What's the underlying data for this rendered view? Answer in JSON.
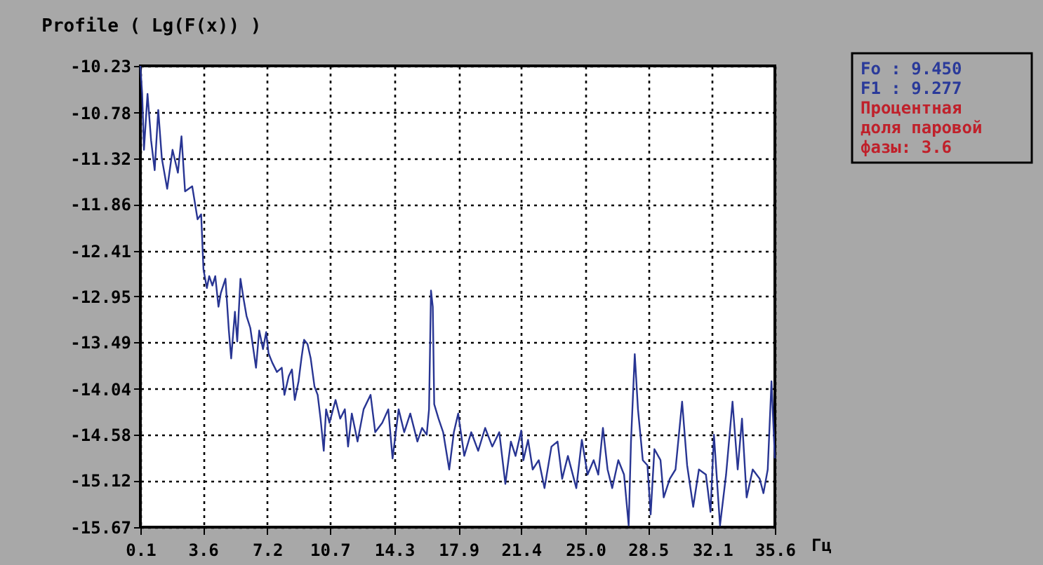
{
  "chart_data": {
    "type": "line",
    "title": "Profile  ( Lg(F(x)) )",
    "xlabel": "Гц",
    "annotations": [
      "Fo  :   9.450",
      "F1  :   9.277",
      "Процентная",
      "доля паровой",
      "фазы:  3.6"
    ],
    "x": [
      0.1,
      0.2,
      0.3,
      0.5,
      0.7,
      0.9,
      1.1,
      1.3,
      1.6,
      1.9,
      2.2,
      2.4,
      2.6,
      3.0,
      3.3,
      3.5,
      3.63,
      3.82,
      3.95,
      4.13,
      4.29,
      4.47,
      4.6,
      4.86,
      5.05,
      5.18,
      5.39,
      5.52,
      5.7,
      5.86,
      6.04,
      6.25,
      6.57,
      6.75,
      6.96,
      7.14,
      7.27,
      7.48,
      7.74,
      8.01,
      8.16,
      8.4,
      8.58,
      8.74,
      8.95,
      9.11,
      9.26,
      9.45,
      9.63,
      9.84,
      10.02,
      10.18,
      10.36,
      10.49,
      10.68,
      11.02,
      11.28,
      11.54,
      11.72,
      11.93,
      12.25,
      12.59,
      12.98,
      13.24,
      13.63,
      13.97,
      14.21,
      14.55,
      14.86,
      15.2,
      15.6,
      15.86,
      16.12,
      16.25,
      16.36,
      16.46,
      16.54,
      16.78,
      17.04,
      17.38,
      17.64,
      17.88,
      18.22,
      18.61,
      19.0,
      19.39,
      19.79,
      20.18,
      20.52,
      20.83,
      21.09,
      21.41,
      21.53,
      21.79,
      22.05,
      22.39,
      22.71,
      23.1,
      23.44,
      23.7,
      24.02,
      24.49,
      24.8,
      25.12,
      25.46,
      25.72,
      25.98,
      26.24,
      26.5,
      26.84,
      27.16,
      27.42,
      27.55,
      27.76,
      27.94,
      28.21,
      28.47,
      28.65,
      28.86,
      29.2,
      29.38,
      29.72,
      30.04,
      30.41,
      30.69,
      31.03,
      31.35,
      31.74,
      32.0,
      32.19,
      32.53,
      32.87,
      33.23,
      33.52,
      33.76,
      34.02,
      34.36,
      34.75,
      34.96,
      35.2,
      35.41,
      35.6
    ],
    "series": [
      {
        "color": "#283593",
        "values": [
          -10.23,
          -10.56,
          -11.22,
          -10.56,
          -11.11,
          -11.46,
          -10.75,
          -11.32,
          -11.68,
          -11.22,
          -11.49,
          -11.06,
          -11.71,
          -11.65,
          -12.04,
          -11.98,
          -12.63,
          -12.85,
          -12.71,
          -12.82,
          -12.71,
          -13.07,
          -12.91,
          -12.74,
          -13.35,
          -13.68,
          -13.13,
          -13.48,
          -12.74,
          -12.96,
          -13.18,
          -13.32,
          -13.79,
          -13.35,
          -13.57,
          -13.37,
          -13.62,
          -13.73,
          -13.84,
          -13.79,
          -14.11,
          -13.89,
          -13.81,
          -14.17,
          -13.95,
          -13.68,
          -13.46,
          -13.51,
          -13.68,
          -14.01,
          -14.11,
          -14.39,
          -14.77,
          -14.28,
          -14.44,
          -14.17,
          -14.39,
          -14.28,
          -14.72,
          -14.33,
          -14.66,
          -14.28,
          -14.11,
          -14.55,
          -14.44,
          -14.28,
          -14.86,
          -14.28,
          -14.55,
          -14.33,
          -14.66,
          -14.5,
          -14.58,
          -14.28,
          -12.88,
          -13.07,
          -14.22,
          -14.39,
          -14.55,
          -14.99,
          -14.55,
          -14.33,
          -14.83,
          -14.55,
          -14.77,
          -14.5,
          -14.72,
          -14.55,
          -15.16,
          -14.66,
          -14.83,
          -14.53,
          -14.88,
          -14.64,
          -14.99,
          -14.88,
          -15.21,
          -14.72,
          -14.66,
          -15.1,
          -14.83,
          -15.21,
          -14.64,
          -15.05,
          -14.88,
          -15.05,
          -14.5,
          -14.99,
          -15.21,
          -14.88,
          -15.05,
          -15.65,
          -14.66,
          -13.63,
          -14.28,
          -14.88,
          -14.94,
          -15.52,
          -14.75,
          -14.88,
          -15.32,
          -15.1,
          -14.99,
          -14.19,
          -14.94,
          -15.43,
          -14.99,
          -15.05,
          -15.49,
          -14.58,
          -15.65,
          -15.05,
          -14.19,
          -14.99,
          -14.39,
          -15.32,
          -14.99,
          -15.1,
          -15.27,
          -14.99,
          -13.95,
          -14.86
        ]
      }
    ],
    "xlim": [
      0.1,
      35.6
    ],
    "xticks": [
      0.1,
      3.6,
      7.2,
      10.7,
      14.3,
      17.9,
      21.4,
      {
        "value": 25,
        "label": "25.0"
      },
      28.5,
      32.1,
      35.6
    ],
    "ylim": [
      -15.67,
      -10.23
    ],
    "yticks": [
      -10.23,
      -10.78,
      -11.32,
      -11.86,
      -12.41,
      -12.95,
      -13.49,
      -14.04,
      -14.58,
      -15.12,
      -15.67
    ],
    "grid": true,
    "line_style": "solid",
    "marker": "none",
    "legend": false
  }
}
